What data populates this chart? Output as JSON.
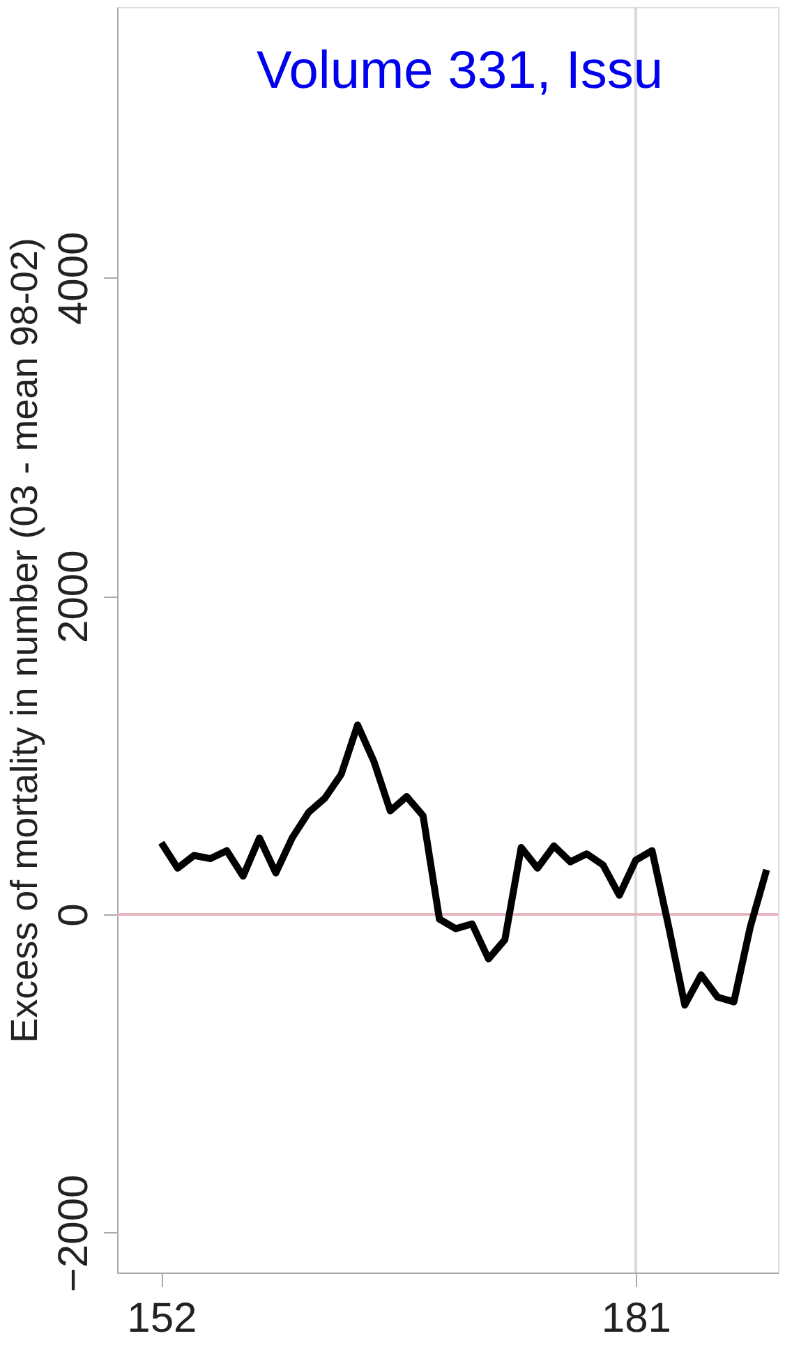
{
  "chart_data": {
    "type": "line",
    "ylabel": "Excess of mortality in number (03 - mean 98-02)",
    "annotations": [
      "Volume 331, Issu"
    ],
    "x": [
      152,
      153,
      154,
      155,
      156,
      157,
      158,
      159,
      160,
      161,
      162,
      163,
      164,
      165,
      166,
      167,
      168,
      169,
      170,
      171,
      172,
      173,
      174,
      175,
      176,
      177,
      178,
      179,
      180,
      181,
      182,
      183,
      184,
      185,
      186,
      187,
      188,
      189
    ],
    "series": [
      {
        "color": "#000000",
        "values": [
          450,
          290,
          370,
          350,
          400,
          240,
          480,
          260,
          480,
          640,
          730,
          880,
          1190,
          960,
          650,
          740,
          620,
          -30,
          -90,
          -60,
          -280,
          -160,
          420,
          290,
          430,
          330,
          380,
          310,
          120,
          340,
          400,
          -70,
          -570,
          -380,
          -520,
          -550,
          -80,
          280
        ]
      }
    ],
    "xlim": [
      149.3,
      189.7
    ],
    "xticks": [
      152,
      181
    ],
    "ylim": [
      -2250,
      5700
    ],
    "yticks": [
      -2000,
      0,
      2000,
      4000
    ],
    "ref_lines": [
      {
        "axis": "x",
        "value": 181,
        "color": "#d9d9d9"
      },
      {
        "axis": "y",
        "value": 0,
        "color": "#e8b4be"
      }
    ],
    "grid": false,
    "marker": "none",
    "line_style": "solid"
  }
}
